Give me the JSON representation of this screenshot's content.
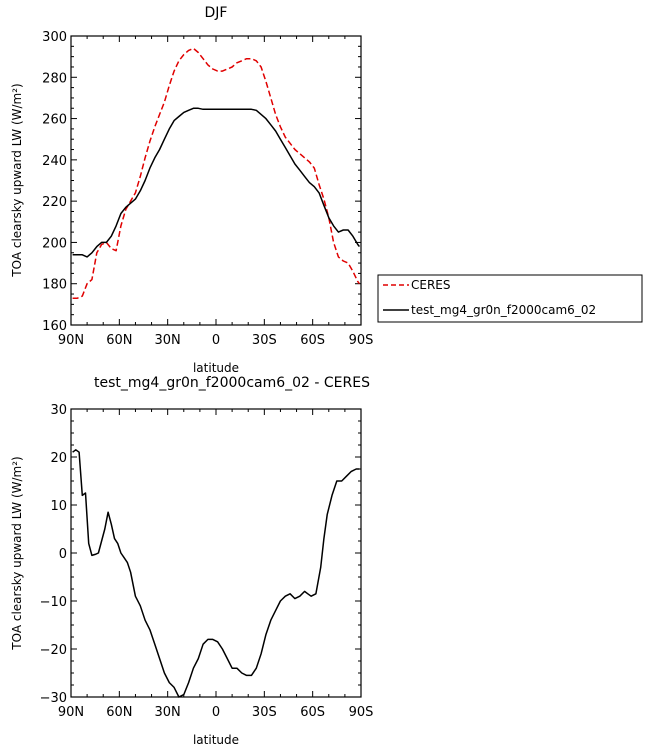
{
  "chart_data": [
    {
      "type": "line",
      "title": "DJF",
      "xlabel": "latitude",
      "ylabel": "TOA clearsky upward LW (W/m²)",
      "xlim": [
        90,
        -90
      ],
      "ylim": [
        160,
        300
      ],
      "xticks": [
        90,
        60,
        30,
        0,
        -30,
        -60,
        -90
      ],
      "xtick_labels": [
        "90N",
        "60N",
        "30N",
        "0",
        "30S",
        "60S",
        "90S"
      ],
      "yticks": [
        160,
        180,
        200,
        220,
        240,
        260,
        280,
        300
      ],
      "ytick_labels": [
        "160",
        "180",
        "200",
        "220",
        "240",
        "260",
        "280",
        "300"
      ],
      "legend": "right",
      "series": [
        {
          "name": "CERES",
          "color": "#e00000",
          "dash": true,
          "x": [
            89,
            86,
            83,
            80,
            77,
            74,
            71,
            68,
            65,
            62,
            59,
            56,
            53,
            50,
            47,
            44,
            41,
            38,
            35,
            32,
            29,
            26,
            23,
            20,
            17,
            14,
            11,
            8,
            5,
            2,
            -1,
            -4,
            -7,
            -10,
            -13,
            -16,
            -19,
            -22,
            -25,
            -28,
            -31,
            -34,
            -37,
            -40,
            -43,
            -46,
            -49,
            -52,
            -55,
            -58,
            -61,
            -64,
            -67,
            -70,
            -73,
            -76,
            -79,
            -82,
            -85,
            -88,
            -89
          ],
          "y": [
            173,
            173,
            174,
            180,
            182,
            195,
            199,
            200,
            197,
            196,
            208,
            216,
            220,
            224,
            232,
            241,
            249,
            256,
            262,
            268,
            276,
            283,
            288,
            291,
            293,
            294,
            292,
            289,
            286,
            284,
            283,
            283,
            284,
            285,
            287,
            288,
            289,
            289,
            288,
            285,
            278,
            270,
            262,
            256,
            251,
            248,
            245,
            243,
            241,
            239,
            236,
            228,
            221,
            212,
            200,
            193,
            191,
            190,
            186,
            181,
            180
          ]
        },
        {
          "name": "test_mg4_gr0n_f2000cam6_02",
          "color": "#000000",
          "dash": false,
          "x": [
            89,
            86,
            83,
            80,
            77,
            74,
            71,
            68,
            65,
            62,
            59,
            56,
            53,
            50,
            47,
            44,
            41,
            38,
            35,
            32,
            29,
            26,
            23,
            20,
            17,
            14,
            11,
            8,
            5,
            2,
            -1,
            -4,
            -7,
            -10,
            -13,
            -16,
            -19,
            -22,
            -25,
            -28,
            -31,
            -34,
            -37,
            -40,
            -43,
            -46,
            -49,
            -52,
            -55,
            -58,
            -61,
            -64,
            -67,
            -70,
            -73,
            -76,
            -79,
            -82,
            -85,
            -88,
            -89
          ],
          "y": [
            194,
            194,
            194,
            193,
            195,
            198,
            200,
            200,
            203,
            208,
            214,
            217,
            219,
            221,
            225,
            230,
            236,
            241,
            245,
            250,
            255,
            259,
            261,
            263,
            264,
            265,
            265,
            264.5,
            264.5,
            264.5,
            264.5,
            264.5,
            264.5,
            264.5,
            264.5,
            264.5,
            264.5,
            264.5,
            264,
            262,
            260,
            257,
            254,
            250,
            246,
            242,
            238,
            235,
            232,
            229,
            227,
            224,
            218,
            212,
            208,
            205,
            206,
            206,
            203,
            199,
            198
          ]
        }
      ]
    },
    {
      "type": "line",
      "title": "test_mg4_gr0n_f2000cam6_02 - CERES",
      "xlabel": "latitude",
      "ylabel": "TOA clearsky upward LW (W/m²)",
      "xlim": [
        90,
        -90
      ],
      "ylim": [
        -30,
        30
      ],
      "xticks": [
        90,
        60,
        30,
        0,
        -30,
        -60,
        -90
      ],
      "xtick_labels": [
        "90N",
        "60N",
        "30N",
        "0",
        "30S",
        "60S",
        "90S"
      ],
      "yticks": [
        -30,
        -20,
        -10,
        0,
        10,
        20,
        30
      ],
      "ytick_labels": [
        "−30",
        "−20",
        "−10",
        "0",
        "10",
        "20",
        "30"
      ],
      "series": [
        {
          "name": "",
          "color": "#000000",
          "dash": false,
          "x": [
            89,
            87,
            85,
            83,
            81,
            79,
            77,
            75,
            73,
            71,
            69,
            67,
            65,
            63,
            61,
            59,
            57,
            55,
            53,
            50,
            47,
            44,
            41,
            38,
            35,
            32,
            29,
            26,
            23,
            20,
            17,
            14,
            11,
            8,
            5,
            2,
            -1,
            -4,
            -7,
            -10,
            -13,
            -16,
            -19,
            -22,
            -25,
            -28,
            -31,
            -34,
            -37,
            -40,
            -43,
            -46,
            -49,
            -52,
            -55,
            -57,
            -59,
            -62,
            -65,
            -67,
            -69,
            -72,
            -75,
            -78,
            -81,
            -84,
            -87,
            -89
          ],
          "y": [
            21,
            21.5,
            21,
            12,
            12.5,
            2,
            -0.5,
            -0.3,
            0,
            2.5,
            5,
            8.5,
            6,
            3,
            2,
            0,
            -1,
            -2,
            -4,
            -9,
            -11,
            -14,
            -16,
            -19,
            -22,
            -25,
            -27,
            -28,
            -30,
            -29.5,
            -27,
            -24,
            -22,
            -19,
            -18,
            -18,
            -18.5,
            -20,
            -22,
            -24,
            -24,
            -25,
            -25.5,
            -25.5,
            -24,
            -21,
            -17,
            -14,
            -12,
            -10,
            -9,
            -8.5,
            -9.5,
            -9,
            -8,
            -8.5,
            -9,
            -8.5,
            -3,
            3,
            8,
            12,
            15,
            15,
            16,
            17,
            17.5,
            17.5
          ]
        }
      ]
    }
  ]
}
